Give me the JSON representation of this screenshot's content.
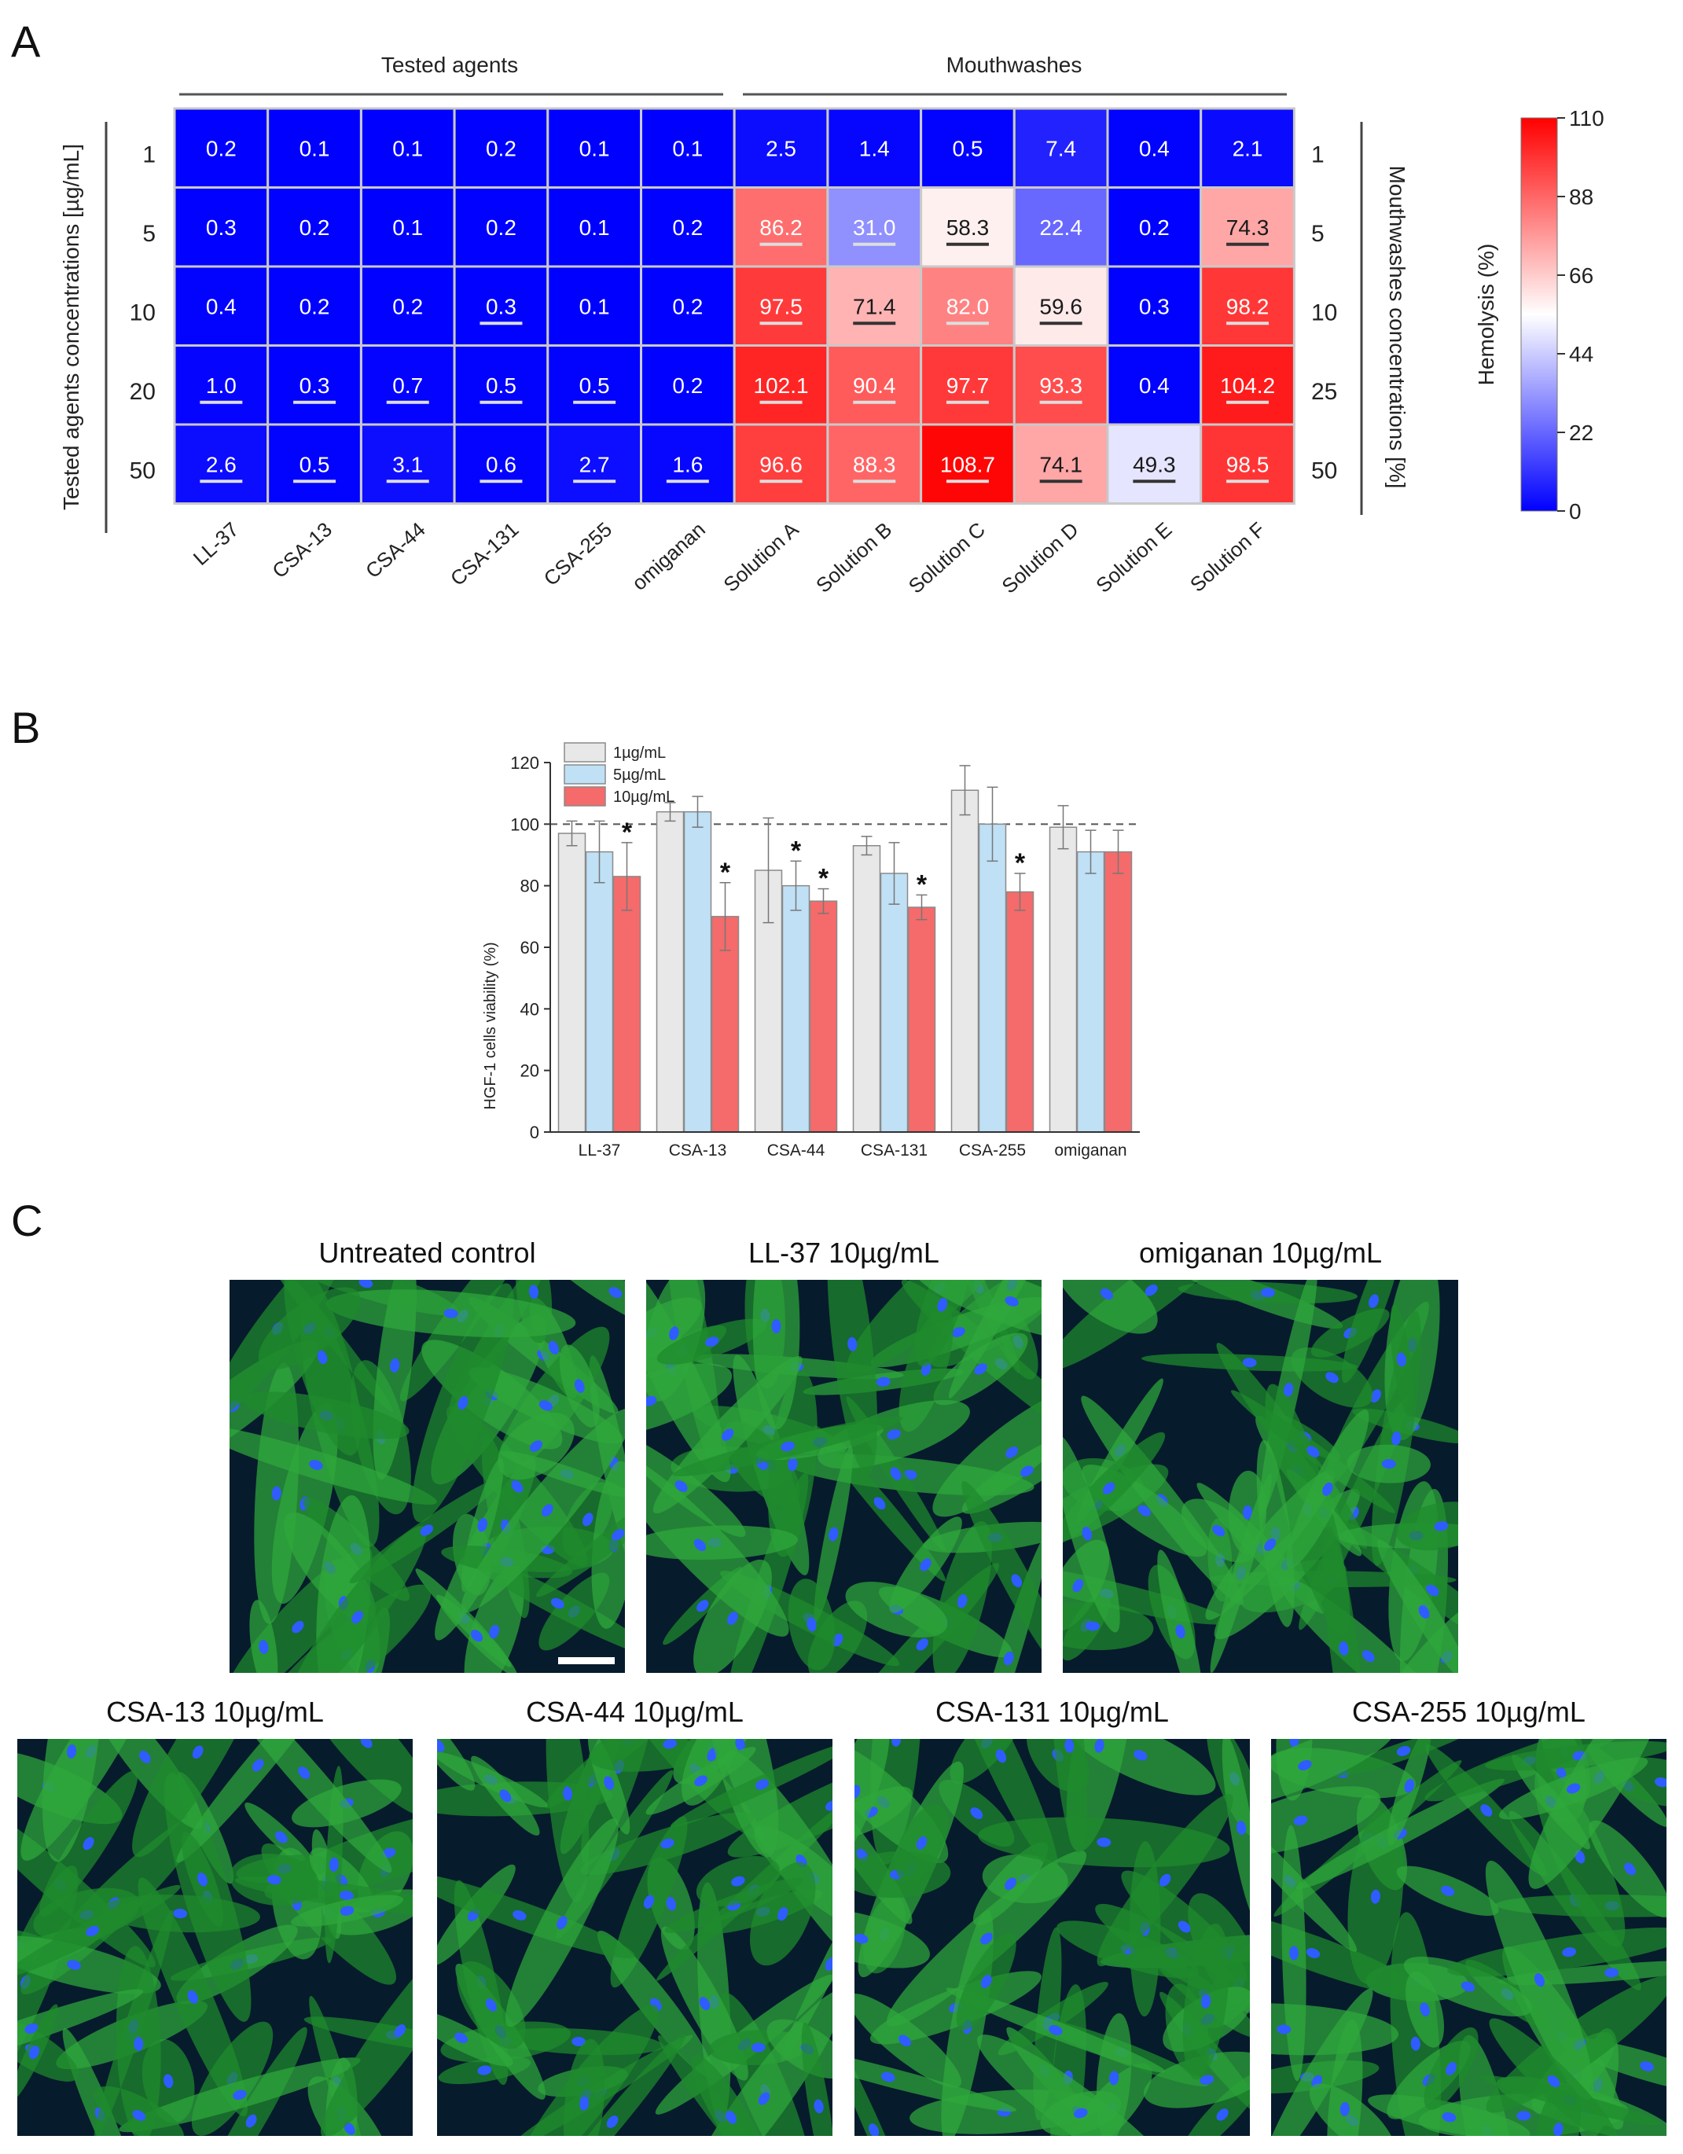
{
  "panels": {
    "a": "A",
    "b": "B",
    "c": "C"
  },
  "heatmap": {
    "type": "heatmap",
    "group_left": "Tested agents",
    "group_right": "Mouthwashes",
    "y_label_left": "Tested agents concentrations [µg/mL]",
    "y_label_right": "Mouthwashes concentrations [%]",
    "columns": [
      "LL-37",
      "CSA-13",
      "CSA-44",
      "CSA-131",
      "CSA-255",
      "omiganan",
      "Solution A",
      "Solution B",
      "Solution C",
      "Solution D",
      "Solution E",
      "Solution F"
    ],
    "rows_left": [
      "1",
      "5",
      "10",
      "20",
      "50"
    ],
    "rows_right": [
      "1",
      "5",
      "10",
      "25",
      "50"
    ],
    "values": [
      [
        "0.2",
        "0.1",
        "0.1",
        "0.2",
        "0.1",
        "0.1",
        "2.5",
        "1.4",
        "0.5",
        "7.4",
        "0.4",
        "2.1"
      ],
      [
        "0.3",
        "0.2",
        "0.1",
        "0.2",
        "0.1",
        "0.2",
        "86.2",
        "31.0",
        "58.3",
        "22.4",
        "0.2",
        "74.3"
      ],
      [
        "0.4",
        "0.2",
        "0.2",
        "0.3",
        "0.1",
        "0.2",
        "97.5",
        "71.4",
        "82.0",
        "59.6",
        "0.3",
        "98.2"
      ],
      [
        "1.0",
        "0.3",
        "0.7",
        "0.5",
        "0.5",
        "0.2",
        "102.1",
        "90.4",
        "97.7",
        "93.3",
        "0.4",
        "104.2"
      ],
      [
        "2.6",
        "0.5",
        "3.1",
        "0.6",
        "2.7",
        "1.6",
        "96.6",
        "88.3",
        "108.7",
        "74.1",
        "49.3",
        "98.5"
      ]
    ],
    "underlined": [
      [
        false,
        false,
        false,
        false,
        false,
        false,
        false,
        false,
        false,
        false,
        false,
        false
      ],
      [
        false,
        false,
        false,
        false,
        false,
        false,
        true,
        true,
        true,
        false,
        false,
        true
      ],
      [
        false,
        false,
        false,
        true,
        false,
        false,
        true,
        true,
        true,
        true,
        false,
        true
      ],
      [
        true,
        true,
        true,
        true,
        true,
        false,
        true,
        true,
        true,
        true,
        false,
        true
      ],
      [
        true,
        true,
        true,
        true,
        true,
        true,
        true,
        true,
        true,
        true,
        true,
        true
      ]
    ],
    "colorbar": {
      "title": "Hemolysis (%)",
      "min": 0,
      "max": 110,
      "ticks": [
        "110",
        "88",
        "66",
        "44",
        "22",
        "0"
      ],
      "colors": {
        "low": "#0000ff",
        "mid": "#ffffff",
        "high": "#ff0000"
      }
    }
  },
  "chart_data": {
    "type": "bar",
    "ylabel": "HGF-1 cells viability (%)",
    "ylim": [
      0,
      120
    ],
    "yticks": [
      "0",
      "20",
      "40",
      "60",
      "80",
      "100",
      "120"
    ],
    "reference_line": 100,
    "categories": [
      "LL-37",
      "CSA-13",
      "CSA-44",
      "CSA-131",
      "CSA-255",
      "omiganan"
    ],
    "series": [
      {
        "name": "1µg/mL",
        "color": "#e8e8e8",
        "values": [
          97,
          104,
          85,
          93,
          111,
          99
        ],
        "errors": [
          4,
          3,
          17,
          3,
          8,
          7
        ],
        "significant": [
          false,
          false,
          false,
          false,
          false,
          false
        ]
      },
      {
        "name": "5µg/mL",
        "color": "#bfe0f5",
        "values": [
          91,
          104,
          80,
          84,
          100,
          91
        ],
        "errors": [
          10,
          5,
          8,
          10,
          12,
          7
        ],
        "significant": [
          false,
          false,
          true,
          false,
          false,
          false
        ]
      },
      {
        "name": "10µg/mL",
        "color": "#f56a6a",
        "values": [
          83,
          70,
          75,
          73,
          78,
          91
        ],
        "errors": [
          11,
          11,
          4,
          4,
          6,
          7
        ],
        "significant": [
          true,
          true,
          true,
          true,
          true,
          false
        ]
      }
    ],
    "significance_mark": "*"
  },
  "micrographs": [
    {
      "label": "Untreated control"
    },
    {
      "label": "LL-37 10µg/mL"
    },
    {
      "label": "omiganan 10µg/mL"
    },
    {
      "label": "CSA-13 10µg/mL"
    },
    {
      "label": "CSA-44 10µg/mL"
    },
    {
      "label": "CSA-131 10µg/mL"
    },
    {
      "label": "CSA-255 10µg/mL"
    }
  ]
}
